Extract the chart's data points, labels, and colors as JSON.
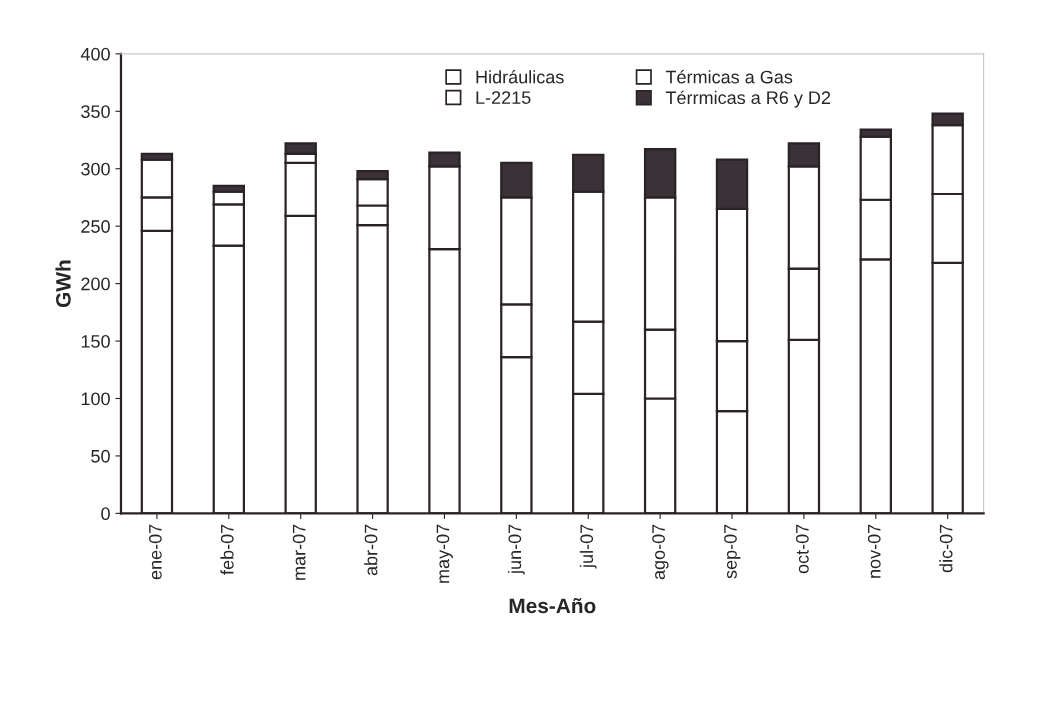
{
  "chart_data": {
    "type": "bar",
    "stacked": true,
    "xlabel": "Mes-Año",
    "ylabel": "GWh",
    "categories": [
      "ene-07",
      "feb-07",
      "mar-07",
      "abr-07",
      "may-07",
      "jun-07",
      "jul-07",
      "ago-07",
      "sep-07",
      "oct-07",
      "nov-07",
      "dic-07"
    ],
    "series": [
      {
        "name": "Hidráulicas",
        "color": "#ffffff",
        "values": [
          246,
          233,
          259,
          251,
          230,
          136,
          104,
          100,
          89,
          151,
          221,
          218
        ]
      },
      {
        "name": "Térmicas a Gas",
        "color": "#ffffff",
        "values": [
          29,
          36,
          46,
          17,
          72,
          46,
          63,
          60,
          61,
          62,
          52,
          60
        ]
      },
      {
        "name": "L-2215",
        "color": "#ffffff",
        "values": [
          33,
          11,
          8,
          23,
          null,
          93,
          113,
          115,
          115,
          89,
          55,
          60
        ]
      },
      {
        "name": "Térrmicas a R6 y D2",
        "color": "#3a3236",
        "values": [
          5,
          5,
          9,
          7,
          12,
          30,
          32,
          42,
          43,
          20,
          6,
          10
        ]
      }
    ],
    "ylim": [
      0,
      400
    ],
    "yticks": [
      0,
      50,
      100,
      150,
      200,
      250,
      300,
      350,
      400
    ],
    "legend": "top",
    "grid": false
  }
}
